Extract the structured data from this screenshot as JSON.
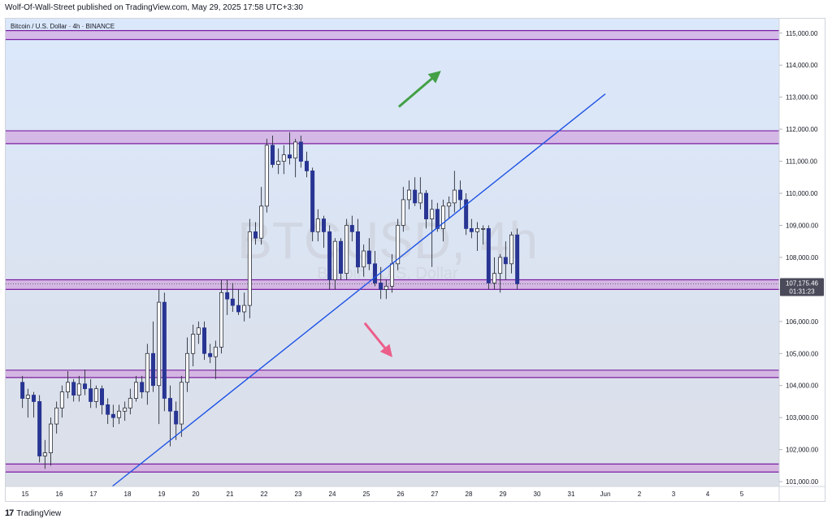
{
  "header": {
    "caption": "Wolf-Of-Wall-Street published on TradingView.com, May 29, 2025 17:58 UTC+3:30"
  },
  "footer": {
    "brand": "TradingView",
    "logo_glyph": "17"
  },
  "chart_data": {
    "type": "candlestick",
    "title": "Bitcoin / U.S. Dollar · 4h · BINANCE",
    "watermark": "BTCUSD, 4h",
    "watermark_sub": "Bitcoin / U.S. Dollar",
    "x_ticks": [
      "15",
      "16",
      "17",
      "18",
      "19",
      "20",
      "21",
      "22",
      "23",
      "24",
      "25",
      "26",
      "27",
      "28",
      "29",
      "30",
      "31",
      "Jun",
      "2",
      "3",
      "4",
      "5"
    ],
    "ylim": [
      100850,
      115450
    ],
    "y_ticks": [
      101000,
      102000,
      103000,
      104000,
      105000,
      106000,
      107000,
      108000,
      109000,
      110000,
      111000,
      112000,
      113000,
      114000,
      115000
    ],
    "y_tick_labels": [
      "101,000.00",
      "102,000.00",
      "103,000.00",
      "104,000.00",
      "105,000.00",
      "106,000.00",
      "107,000.00",
      "108,000.00",
      "109,000.00",
      "110,000.00",
      "111,000.00",
      "112,000.00",
      "113,000.00",
      "114,000.00",
      "115,000.00"
    ],
    "current_price": {
      "value": 107175.46,
      "label": "107,175.46",
      "countdown": "01:31:23"
    },
    "colors": {
      "up": "#ffffff",
      "down": "#283593",
      "wick": "#2a2e39",
      "zone_fill": "#ce93d8",
      "zone_line": "#7b1fa2",
      "trendline": "#1e53e5",
      "arrow_up": "#43a047",
      "arrow_down": "#ec5e8a",
      "bg_top": "#dbe8fb",
      "bg_bottom": "#dbdfe8",
      "price_tag": "#4a4a5a"
    },
    "zones": [
      {
        "low": 114800,
        "high": 115080
      },
      {
        "low": 111550,
        "high": 111950
      },
      {
        "low": 107000,
        "high": 107300
      },
      {
        "low": 104250,
        "high": 104480
      },
      {
        "low": 101300,
        "high": 101550
      }
    ],
    "trendline": {
      "start": {
        "day": 17.55,
        "price": 100850
      },
      "end": {
        "day": 32.0,
        "price": 113100
      }
    },
    "arrows": [
      {
        "direction": "up",
        "from": {
          "day": 25.95,
          "price": 112700
        },
        "to": {
          "day": 27.05,
          "price": 113700
        }
      },
      {
        "direction": "down",
        "from": {
          "day": 24.95,
          "price": 105950
        },
        "to": {
          "day": 25.65,
          "price": 105030
        }
      }
    ],
    "candles": [
      {
        "day": 14.92,
        "open": 104100,
        "high": 104300,
        "low": 103300,
        "close": 103600
      },
      {
        "day": 15.08,
        "open": 103600,
        "high": 103900,
        "low": 103000,
        "close": 103700
      },
      {
        "day": 15.25,
        "open": 103700,
        "high": 103800,
        "low": 103000,
        "close": 103500
      },
      {
        "day": 15.42,
        "open": 103500,
        "high": 103700,
        "low": 101600,
        "close": 101800
      },
      {
        "day": 15.58,
        "open": 101800,
        "high": 102300,
        "low": 101400,
        "close": 101900
      },
      {
        "day": 15.75,
        "open": 101900,
        "high": 103000,
        "low": 101500,
        "close": 102800
      },
      {
        "day": 15.92,
        "open": 102800,
        "high": 103500,
        "low": 102500,
        "close": 103300
      },
      {
        "day": 16.08,
        "open": 103300,
        "high": 104000,
        "low": 103000,
        "close": 103800
      },
      {
        "day": 16.25,
        "open": 103800,
        "high": 104450,
        "low": 103600,
        "close": 104100
      },
      {
        "day": 16.42,
        "open": 104100,
        "high": 104200,
        "low": 103500,
        "close": 103700
      },
      {
        "day": 16.58,
        "open": 103700,
        "high": 104300,
        "low": 103500,
        "close": 104050
      },
      {
        "day": 16.75,
        "open": 104050,
        "high": 104500,
        "low": 103700,
        "close": 103900
      },
      {
        "day": 16.92,
        "open": 103900,
        "high": 104200,
        "low": 103300,
        "close": 103500
      },
      {
        "day": 17.08,
        "open": 103500,
        "high": 104000,
        "low": 103300,
        "close": 103900
      },
      {
        "day": 17.25,
        "open": 103900,
        "high": 104000,
        "low": 103100,
        "close": 103400
      },
      {
        "day": 17.42,
        "open": 103400,
        "high": 103600,
        "low": 102800,
        "close": 103100
      },
      {
        "day": 17.58,
        "open": 103100,
        "high": 103400,
        "low": 102700,
        "close": 103000
      },
      {
        "day": 17.75,
        "open": 103000,
        "high": 103400,
        "low": 102800,
        "close": 103200
      },
      {
        "day": 17.92,
        "open": 103200,
        "high": 103500,
        "low": 102900,
        "close": 103300
      },
      {
        "day": 18.08,
        "open": 103300,
        "high": 103900,
        "low": 103100,
        "close": 103600
      },
      {
        "day": 18.25,
        "open": 103600,
        "high": 104300,
        "low": 103500,
        "close": 104100
      },
      {
        "day": 18.42,
        "open": 104100,
        "high": 104300,
        "low": 103600,
        "close": 103800
      },
      {
        "day": 18.58,
        "open": 103800,
        "high": 105300,
        "low": 103400,
        "close": 105000
      },
      {
        "day": 18.75,
        "open": 105000,
        "high": 106000,
        "low": 103800,
        "close": 104000
      },
      {
        "day": 18.92,
        "open": 104000,
        "high": 107000,
        "low": 102800,
        "close": 106600
      },
      {
        "day": 19.08,
        "open": 106600,
        "high": 106900,
        "low": 103200,
        "close": 103600
      },
      {
        "day": 19.25,
        "open": 103600,
        "high": 104000,
        "low": 102100,
        "close": 103200
      },
      {
        "day": 19.42,
        "open": 103200,
        "high": 103500,
        "low": 102300,
        "close": 102800
      },
      {
        "day": 19.58,
        "open": 102800,
        "high": 104300,
        "low": 102400,
        "close": 104100
      },
      {
        "day": 19.75,
        "open": 104100,
        "high": 105500,
        "low": 103800,
        "close": 105000
      },
      {
        "day": 19.92,
        "open": 105000,
        "high": 105900,
        "low": 104600,
        "close": 105600
      },
      {
        "day": 20.08,
        "open": 105600,
        "high": 106000,
        "low": 105300,
        "close": 105800
      },
      {
        "day": 20.25,
        "open": 105800,
        "high": 106000,
        "low": 104800,
        "close": 105000
      },
      {
        "day": 20.42,
        "open": 105000,
        "high": 105300,
        "low": 104700,
        "close": 104900
      },
      {
        "day": 20.58,
        "open": 104900,
        "high": 105400,
        "low": 104200,
        "close": 105200
      },
      {
        "day": 20.75,
        "open": 105200,
        "high": 107300,
        "low": 105000,
        "close": 106900
      },
      {
        "day": 20.92,
        "open": 106900,
        "high": 107300,
        "low": 106200,
        "close": 106700
      },
      {
        "day": 21.08,
        "open": 106700,
        "high": 107200,
        "low": 106300,
        "close": 106500
      },
      {
        "day": 21.25,
        "open": 106500,
        "high": 107000,
        "low": 106200,
        "close": 106300
      },
      {
        "day": 21.42,
        "open": 106300,
        "high": 106900,
        "low": 106000,
        "close": 106500
      },
      {
        "day": 21.58,
        "open": 106500,
        "high": 109200,
        "low": 106100,
        "close": 108800
      },
      {
        "day": 21.75,
        "open": 108800,
        "high": 109100,
        "low": 108400,
        "close": 108600
      },
      {
        "day": 21.92,
        "open": 108600,
        "high": 110200,
        "low": 108400,
        "close": 109600
      },
      {
        "day": 22.08,
        "open": 109600,
        "high": 111700,
        "low": 109400,
        "close": 111500
      },
      {
        "day": 22.25,
        "open": 111500,
        "high": 111800,
        "low": 110800,
        "close": 110900
      },
      {
        "day": 22.42,
        "open": 110900,
        "high": 111400,
        "low": 110600,
        "close": 111000
      },
      {
        "day": 22.58,
        "open": 111000,
        "high": 111500,
        "low": 110600,
        "close": 111200
      },
      {
        "day": 22.75,
        "open": 111200,
        "high": 111900,
        "low": 110900,
        "close": 111100
      },
      {
        "day": 22.92,
        "open": 111100,
        "high": 111700,
        "low": 110500,
        "close": 111600
      },
      {
        "day": 23.08,
        "open": 111600,
        "high": 111800,
        "low": 110800,
        "close": 111000
      },
      {
        "day": 23.25,
        "open": 111000,
        "high": 111300,
        "low": 110500,
        "close": 110700
      },
      {
        "day": 23.42,
        "open": 110700,
        "high": 110800,
        "low": 108500,
        "close": 108800
      },
      {
        "day": 23.58,
        "open": 108800,
        "high": 109500,
        "low": 108500,
        "close": 109200
      },
      {
        "day": 23.75,
        "open": 109200,
        "high": 109300,
        "low": 108300,
        "close": 108800
      },
      {
        "day": 23.92,
        "open": 108800,
        "high": 109000,
        "low": 107000,
        "close": 107300
      },
      {
        "day": 24.08,
        "open": 107300,
        "high": 108600,
        "low": 107000,
        "close": 108500
      },
      {
        "day": 24.25,
        "open": 108500,
        "high": 108600,
        "low": 107300,
        "close": 107500
      },
      {
        "day": 24.42,
        "open": 107500,
        "high": 109200,
        "low": 107300,
        "close": 109000
      },
      {
        "day": 24.58,
        "open": 109000,
        "high": 109300,
        "low": 108500,
        "close": 108800
      },
      {
        "day": 24.75,
        "open": 108800,
        "high": 109200,
        "low": 107500,
        "close": 107700
      },
      {
        "day": 24.92,
        "open": 107700,
        "high": 108400,
        "low": 107400,
        "close": 108200
      },
      {
        "day": 25.08,
        "open": 108200,
        "high": 108600,
        "low": 107600,
        "close": 107800
      },
      {
        "day": 25.25,
        "open": 107800,
        "high": 108200,
        "low": 107100,
        "close": 107200
      },
      {
        "day": 25.42,
        "open": 107200,
        "high": 107700,
        "low": 106700,
        "close": 107000
      },
      {
        "day": 25.58,
        "open": 107000,
        "high": 107300,
        "low": 106700,
        "close": 107100
      },
      {
        "day": 25.75,
        "open": 107100,
        "high": 108100,
        "low": 106900,
        "close": 107800
      },
      {
        "day": 25.92,
        "open": 107800,
        "high": 109200,
        "low": 107600,
        "close": 109000
      },
      {
        "day": 26.08,
        "open": 109000,
        "high": 110200,
        "low": 108800,
        "close": 109800
      },
      {
        "day": 26.25,
        "open": 109800,
        "high": 110400,
        "low": 109500,
        "close": 110100
      },
      {
        "day": 26.42,
        "open": 110100,
        "high": 110500,
        "low": 109600,
        "close": 109700
      },
      {
        "day": 26.58,
        "open": 109700,
        "high": 110500,
        "low": 109500,
        "close": 110000
      },
      {
        "day": 26.75,
        "open": 110000,
        "high": 110100,
        "low": 108900,
        "close": 109200
      },
      {
        "day": 26.92,
        "open": 109200,
        "high": 109800,
        "low": 107700,
        "close": 109500
      },
      {
        "day": 27.08,
        "open": 109500,
        "high": 109700,
        "low": 108800,
        "close": 108900
      },
      {
        "day": 27.25,
        "open": 108900,
        "high": 109800,
        "low": 108500,
        "close": 109600
      },
      {
        "day": 27.42,
        "open": 109600,
        "high": 109900,
        "low": 109200,
        "close": 109700
      },
      {
        "day": 27.58,
        "open": 109700,
        "high": 110700,
        "low": 109400,
        "close": 110100
      },
      {
        "day": 27.75,
        "open": 110100,
        "high": 110400,
        "low": 109500,
        "close": 109800
      },
      {
        "day": 27.92,
        "open": 109800,
        "high": 110000,
        "low": 108700,
        "close": 108900
      },
      {
        "day": 28.08,
        "open": 108900,
        "high": 109200,
        "low": 108600,
        "close": 108800
      },
      {
        "day": 28.25,
        "open": 108800,
        "high": 109100,
        "low": 108200,
        "close": 108900
      },
      {
        "day": 28.42,
        "open": 108900,
        "high": 109000,
        "low": 108400,
        "close": 108900
      },
      {
        "day": 28.58,
        "open": 108900,
        "high": 109000,
        "low": 107000,
        "close": 107200
      },
      {
        "day": 28.75,
        "open": 107200,
        "high": 108000,
        "low": 107000,
        "close": 107500
      },
      {
        "day": 28.92,
        "open": 107500,
        "high": 108100,
        "low": 106900,
        "close": 108000
      },
      {
        "day": 29.08,
        "open": 108000,
        "high": 108500,
        "low": 107300,
        "close": 107800
      },
      {
        "day": 29.25,
        "open": 107800,
        "high": 108800,
        "low": 107500,
        "close": 108700
      },
      {
        "day": 29.42,
        "open": 108700,
        "high": 108900,
        "low": 107000,
        "close": 107175
      }
    ]
  }
}
